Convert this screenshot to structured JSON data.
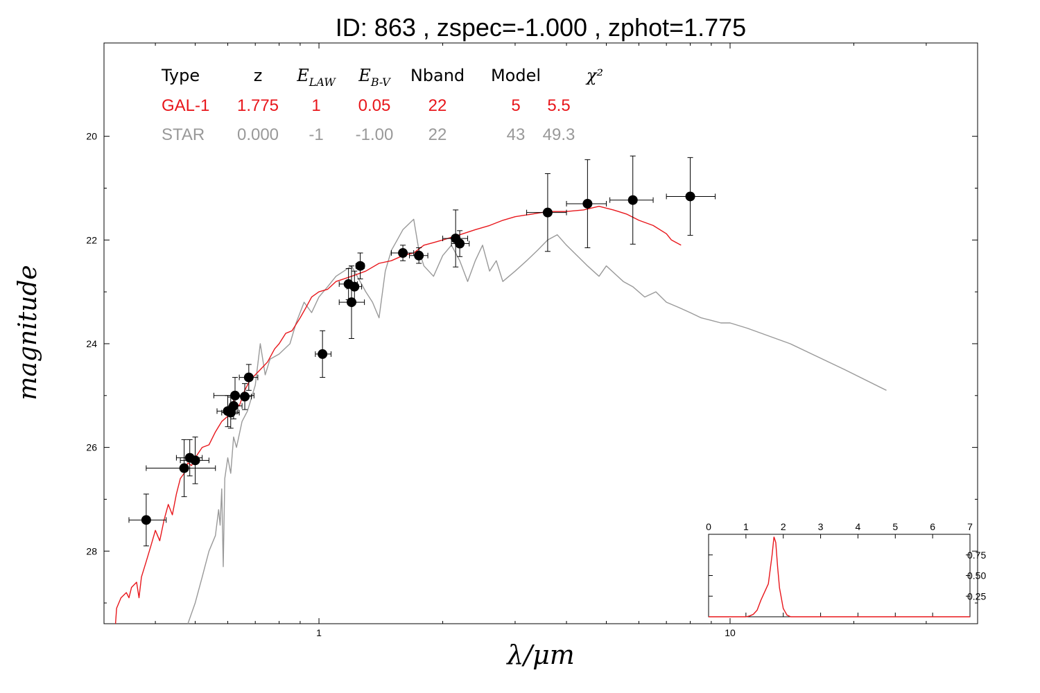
{
  "title": "ID:  863   , zspec=-1.000 , zphot=1.775",
  "colors": {
    "gal": "#e8161b",
    "star": "#999999",
    "points": "#000000",
    "axis": "#000000"
  },
  "chart_data": [
    {
      "type": "scatter",
      "xlabel": "λ/μm",
      "ylabel": "magnitude",
      "x_scale": "log",
      "xlim": [
        0.3,
        40
      ],
      "ylim": [
        29.4,
        18.2
      ],
      "y_inverted": true,
      "x_ticks": [
        {
          "value": 1,
          "label": "1"
        },
        {
          "value": 10,
          "label": "10"
        }
      ],
      "y_ticks": [
        {
          "value": 20,
          "label": "20"
        },
        {
          "value": 22,
          "label": "22"
        },
        {
          "value": 24,
          "label": "24"
        },
        {
          "value": 26,
          "label": "26"
        },
        {
          "value": 28,
          "label": "28"
        }
      ],
      "fit_table": {
        "headers": [
          "Type",
          "z",
          "E_LAW",
          "E_B-V",
          "Nband",
          "Model",
          "χ²"
        ],
        "rows": [
          {
            "color": "#e8161b",
            "cells": [
              "GAL-1",
              "1.775",
              "1",
              "0.05",
              "22",
              "5",
              "5.5"
            ]
          },
          {
            "color": "#999999",
            "cells": [
              "STAR",
              "0.000",
              "-1",
              "-1.00",
              "22",
              "43",
              "49.3"
            ]
          }
        ]
      },
      "photometry": [
        {
          "x": 0.38,
          "y": 27.4,
          "xerr": [
            0.345,
            0.425
          ],
          "yerr": 0.5
        },
        {
          "x": 0.47,
          "y": 26.4,
          "xerr": [
            0.38,
            0.56
          ],
          "yerr": 0.55
        },
        {
          "x": 0.485,
          "y": 26.2,
          "xerr": [
            0.45,
            0.52
          ],
          "yerr": 0.35
        },
        {
          "x": 0.5,
          "y": 26.25,
          "xerr": [
            0.46,
            0.54
          ],
          "yerr": 0.45
        },
        {
          "x": 0.6,
          "y": 25.3,
          "xerr": [
            0.565,
            0.635
          ],
          "yerr": 0.3
        },
        {
          "x": 0.61,
          "y": 25.33,
          "xerr": [
            0.58,
            0.64
          ],
          "yerr": 0.3
        },
        {
          "x": 0.62,
          "y": 25.2,
          "xerr": [
            0.6,
            0.65
          ],
          "yerr": 0.25
        },
        {
          "x": 0.625,
          "y": 25.0,
          "xerr": [
            0.555,
            0.695
          ],
          "yerr": 0.35
        },
        {
          "x": 0.66,
          "y": 25.02,
          "xerr": [
            0.635,
            0.685
          ],
          "yerr": 0.25
        },
        {
          "x": 0.675,
          "y": 24.65,
          "xerr": [
            0.64,
            0.71
          ],
          "yerr": 0.25
        },
        {
          "x": 1.02,
          "y": 24.2,
          "xerr": [
            0.98,
            1.07
          ],
          "yerr": 0.45
        },
        {
          "x": 1.18,
          "y": 22.85,
          "xerr": [
            1.12,
            1.24
          ],
          "yerr": 0.3
        },
        {
          "x": 1.2,
          "y": 23.2,
          "xerr": [
            1.12,
            1.29
          ],
          "yerr": 0.7
        },
        {
          "x": 1.22,
          "y": 22.9,
          "xerr": [
            1.17,
            1.27
          ],
          "yerr": 0.3
        },
        {
          "x": 1.26,
          "y": 22.5,
          "xerr": [
            1.23,
            1.29
          ],
          "yerr": 0.25
        },
        {
          "x": 1.6,
          "y": 22.25,
          "xerr": [
            1.5,
            1.7
          ],
          "yerr": 0.15
        },
        {
          "x": 1.75,
          "y": 22.3,
          "xerr": [
            1.66,
            1.84
          ],
          "yerr": 0.15
        },
        {
          "x": 2.15,
          "y": 21.97,
          "xerr": [
            2.0,
            2.3
          ],
          "yerr": 0.55
        },
        {
          "x": 2.2,
          "y": 22.07,
          "xerr": [
            2.1,
            2.32
          ],
          "yerr": 0.25
        },
        {
          "x": 3.6,
          "y": 21.47,
          "xerr": [
            3.2,
            4.0
          ],
          "yerr": 0.75
        },
        {
          "x": 4.5,
          "y": 21.3,
          "xerr": [
            4.0,
            5.0
          ],
          "yerr": 0.85
        },
        {
          "x": 5.8,
          "y": 21.23,
          "xerr": [
            5.1,
            6.5
          ],
          "yerr": 0.85
        },
        {
          "x": 8.0,
          "y": 21.16,
          "xerr": [
            7.0,
            9.2
          ],
          "yerr": 0.75
        }
      ],
      "series": [
        {
          "name": "GAL-1",
          "color": "#e8161b",
          "points": [
            [
              0.32,
              29.4
            ],
            [
              0.322,
              29.1
            ],
            [
              0.33,
              28.9
            ],
            [
              0.34,
              28.8
            ],
            [
              0.345,
              28.9
            ],
            [
              0.35,
              28.7
            ],
            [
              0.36,
              28.6
            ],
            [
              0.365,
              28.9
            ],
            [
              0.37,
              28.5
            ],
            [
              0.38,
              28.2
            ],
            [
              0.39,
              27.9
            ],
            [
              0.4,
              27.6
            ],
            [
              0.41,
              27.8
            ],
            [
              0.42,
              27.4
            ],
            [
              0.43,
              27.1
            ],
            [
              0.44,
              27.3
            ],
            [
              0.45,
              26.9
            ],
            [
              0.46,
              26.6
            ],
            [
              0.47,
              26.5
            ],
            [
              0.48,
              26.3
            ],
            [
              0.49,
              26.35
            ],
            [
              0.5,
              26.2
            ],
            [
              0.52,
              26.0
            ],
            [
              0.54,
              25.95
            ],
            [
              0.56,
              25.7
            ],
            [
              0.58,
              25.5
            ],
            [
              0.6,
              25.4
            ],
            [
              0.62,
              25.1
            ],
            [
              0.64,
              25.2
            ],
            [
              0.66,
              24.9
            ],
            [
              0.68,
              24.7
            ],
            [
              0.7,
              24.6
            ],
            [
              0.72,
              24.5
            ],
            [
              0.75,
              24.35
            ],
            [
              0.78,
              24.1
            ],
            [
              0.8,
              24.0
            ],
            [
              0.83,
              23.8
            ],
            [
              0.86,
              23.75
            ],
            [
              0.9,
              23.5
            ],
            [
              0.93,
              23.3
            ],
            [
              0.96,
              23.1
            ],
            [
              1.0,
              23.0
            ],
            [
              1.05,
              22.95
            ],
            [
              1.1,
              22.8
            ],
            [
              1.15,
              22.75
            ],
            [
              1.2,
              22.7
            ],
            [
              1.3,
              22.6
            ],
            [
              1.4,
              22.45
            ],
            [
              1.5,
              22.4
            ],
            [
              1.6,
              22.3
            ],
            [
              1.7,
              22.25
            ],
            [
              1.8,
              22.1
            ],
            [
              1.9,
              22.05
            ],
            [
              2.0,
              22.0
            ],
            [
              2.2,
              21.9
            ],
            [
              2.4,
              21.8
            ],
            [
              2.6,
              21.72
            ],
            [
              2.8,
              21.62
            ],
            [
              3.0,
              21.55
            ],
            [
              3.3,
              21.5
            ],
            [
              3.6,
              21.45
            ],
            [
              4.0,
              21.45
            ],
            [
              4.4,
              21.42
            ],
            [
              4.8,
              21.35
            ],
            [
              5.2,
              21.42
            ],
            [
              5.6,
              21.5
            ],
            [
              6.0,
              21.62
            ],
            [
              6.5,
              21.72
            ],
            [
              7.0,
              21.88
            ],
            [
              7.2,
              22.0
            ],
            [
              7.4,
              22.05
            ],
            [
              7.6,
              22.1
            ]
          ]
        },
        {
          "name": "STAR",
          "color": "#999999",
          "points": [
            [
              0.48,
              29.4
            ],
            [
              0.5,
              29.0
            ],
            [
              0.52,
              28.5
            ],
            [
              0.54,
              28.0
            ],
            [
              0.56,
              27.7
            ],
            [
              0.57,
              27.2
            ],
            [
              0.575,
              27.5
            ],
            [
              0.58,
              26.8
            ],
            [
              0.585,
              28.3
            ],
            [
              0.59,
              26.6
            ],
            [
              0.6,
              26.2
            ],
            [
              0.61,
              26.5
            ],
            [
              0.62,
              25.8
            ],
            [
              0.63,
              26.0
            ],
            [
              0.65,
              25.5
            ],
            [
              0.67,
              25.3
            ],
            [
              0.7,
              24.8
            ],
            [
              0.72,
              24.0
            ],
            [
              0.74,
              24.6
            ],
            [
              0.76,
              24.3
            ],
            [
              0.8,
              24.2
            ],
            [
              0.85,
              24.0
            ],
            [
              0.88,
              23.6
            ],
            [
              0.92,
              23.2
            ],
            [
              0.96,
              23.4
            ],
            [
              1.0,
              23.1
            ],
            [
              1.05,
              22.9
            ],
            [
              1.1,
              22.7
            ],
            [
              1.15,
              22.6
            ],
            [
              1.2,
              22.5
            ],
            [
              1.3,
              23.0
            ],
            [
              1.35,
              23.2
            ],
            [
              1.4,
              23.5
            ],
            [
              1.45,
              22.6
            ],
            [
              1.5,
              22.2
            ],
            [
              1.55,
              22.0
            ],
            [
              1.6,
              21.8
            ],
            [
              1.7,
              21.6
            ],
            [
              1.75,
              22.2
            ],
            [
              1.8,
              22.5
            ],
            [
              1.9,
              22.7
            ],
            [
              2.0,
              22.3
            ],
            [
              2.1,
              22.1
            ],
            [
              2.2,
              22.4
            ],
            [
              2.3,
              22.8
            ],
            [
              2.4,
              22.4
            ],
            [
              2.5,
              22.1
            ],
            [
              2.6,
              22.6
            ],
            [
              2.7,
              22.4
            ],
            [
              2.8,
              22.8
            ],
            [
              3.0,
              22.6
            ],
            [
              3.2,
              22.4
            ],
            [
              3.4,
              22.2
            ],
            [
              3.6,
              22.0
            ],
            [
              3.8,
              21.9
            ],
            [
              4.0,
              22.1
            ],
            [
              4.5,
              22.5
            ],
            [
              4.8,
              22.7
            ],
            [
              5.0,
              22.5
            ],
            [
              5.5,
              22.8
            ],
            [
              5.8,
              22.9
            ],
            [
              6.2,
              23.1
            ],
            [
              6.6,
              23.0
            ],
            [
              7.0,
              23.2
            ],
            [
              7.5,
              23.3
            ],
            [
              8.0,
              23.4
            ],
            [
              8.5,
              23.5
            ],
            [
              9.0,
              23.55
            ],
            [
              9.5,
              23.6
            ],
            [
              10.0,
              23.6
            ],
            [
              11.0,
              23.7
            ],
            [
              14.0,
              24.0
            ],
            [
              19.0,
              24.5
            ],
            [
              24.0,
              24.9
            ]
          ]
        }
      ]
    },
    {
      "type": "line",
      "title": "",
      "xlabel": "",
      "ylabel": "",
      "xlim": [
        0,
        7
      ],
      "ylim": [
        0,
        1.0
      ],
      "x_ticks": [
        {
          "value": 0,
          "label": "0"
        },
        {
          "value": 1,
          "label": "1"
        },
        {
          "value": 2,
          "label": "2"
        },
        {
          "value": 3,
          "label": "3"
        },
        {
          "value": 4,
          "label": "4"
        },
        {
          "value": 5,
          "label": "5"
        },
        {
          "value": 6,
          "label": "6"
        },
        {
          "value": 7,
          "label": "7"
        }
      ],
      "y_ticks": [
        {
          "value": 0.25,
          "label": "0.25"
        },
        {
          "value": 0.5,
          "label": "0.50"
        },
        {
          "value": 0.75,
          "label": "0.75"
        }
      ],
      "series": [
        {
          "color": "#e8161b",
          "points": [
            [
              0,
              0
            ],
            [
              1.0,
              0
            ],
            [
              1.1,
              0.01
            ],
            [
              1.2,
              0.03
            ],
            [
              1.3,
              0.08
            ],
            [
              1.4,
              0.2
            ],
            [
              1.5,
              0.3
            ],
            [
              1.6,
              0.4
            ],
            [
              1.7,
              0.75
            ],
            [
              1.75,
              0.97
            ],
            [
              1.8,
              0.9
            ],
            [
              1.85,
              0.6
            ],
            [
              1.9,
              0.35
            ],
            [
              2.0,
              0.1
            ],
            [
              2.1,
              0.02
            ],
            [
              2.2,
              0
            ],
            [
              7,
              0
            ]
          ]
        }
      ]
    }
  ]
}
